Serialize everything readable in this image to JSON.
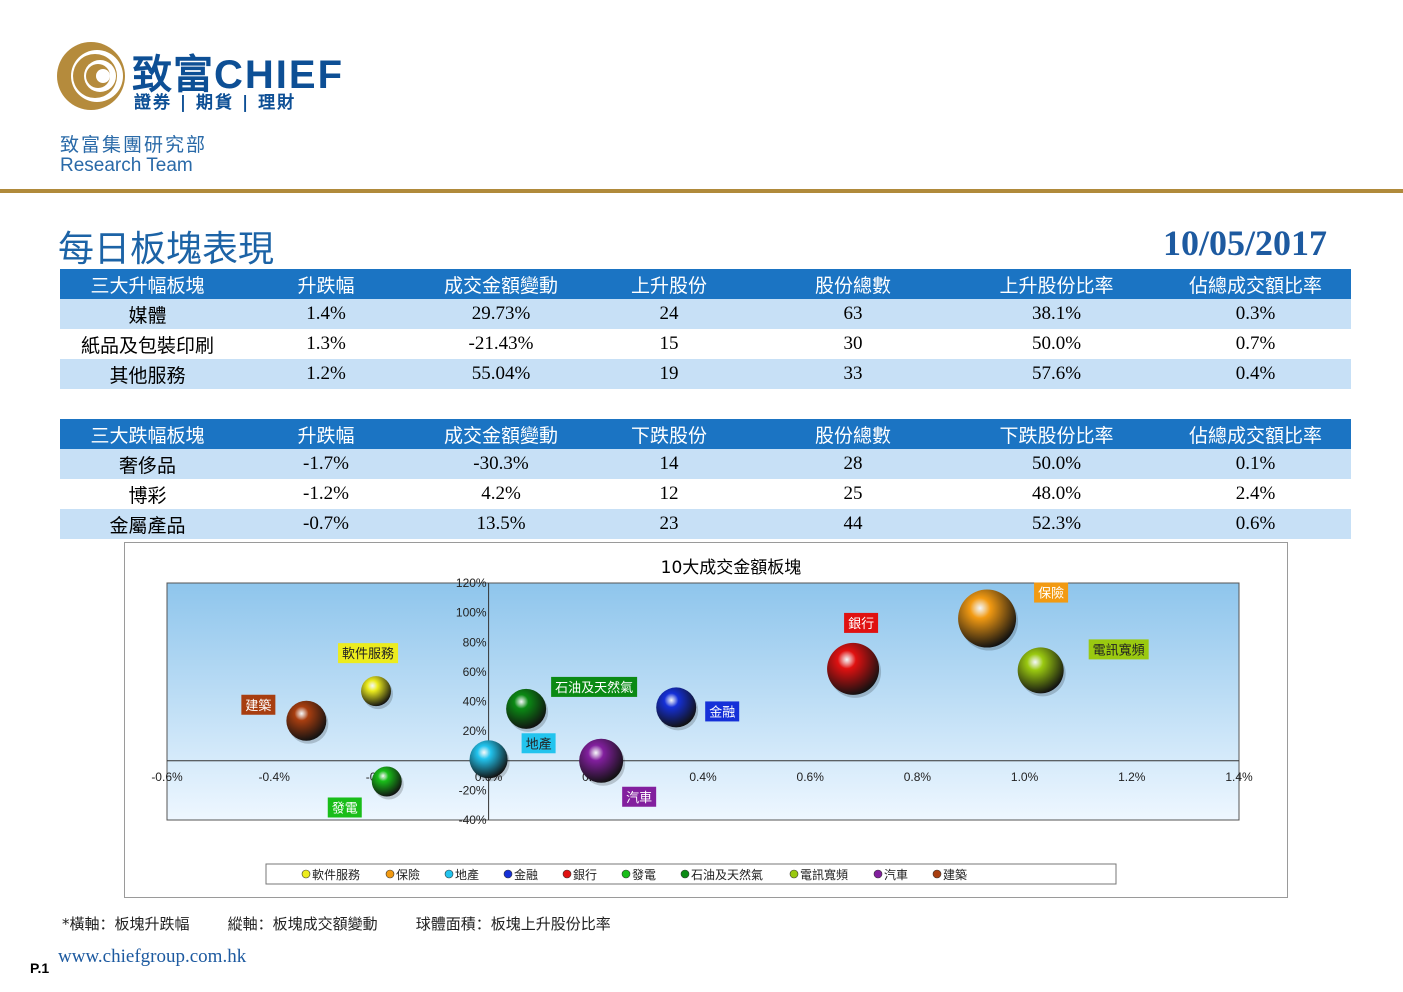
{
  "header": {
    "brand_cn": "致富",
    "brand_en": "CHIEF",
    "brand_sub": "證券 | 期貨 | 理財",
    "dept_cn": "致富集團研究部",
    "dept_en": "Research Team",
    "page_title": "每日板塊表現",
    "date": "10/05/2017",
    "colors": {
      "brand_blue": "#0d4f95",
      "gold": "#b08a3b",
      "table_header": "#1b74c3",
      "row_shade": "#c7e0f6"
    }
  },
  "table_up": {
    "headers": [
      "三大升幅板塊",
      "升跌幅",
      "成交金額變動",
      "上升股份",
      "股份總數",
      "上升股份比率",
      "佔總成交額比率"
    ],
    "rows": [
      [
        "媒體",
        "1.4%",
        "29.73%",
        "24",
        "63",
        "38.1%",
        "0.3%"
      ],
      [
        "紙品及包裝印刷",
        "1.3%",
        "-21.43%",
        "15",
        "30",
        "50.0%",
        "0.7%"
      ],
      [
        "其他服務",
        "1.2%",
        "55.04%",
        "19",
        "33",
        "57.6%",
        "0.4%"
      ]
    ]
  },
  "table_down": {
    "headers": [
      "三大跌幅板塊",
      "升跌幅",
      "成交金額變動",
      "下跌股份",
      "股份總數",
      "下跌股份比率",
      "佔總成交額比率"
    ],
    "rows": [
      [
        "奢侈品",
        "-1.7%",
        "-30.3%",
        "14",
        "28",
        "50.0%",
        "0.1%"
      ],
      [
        "博彩",
        "-1.2%",
        "4.2%",
        "12",
        "25",
        "48.0%",
        "2.4%"
      ],
      [
        "金屬產品",
        "-0.7%",
        "13.5%",
        "23",
        "44",
        "52.3%",
        "0.6%"
      ]
    ]
  },
  "chart_data": {
    "type": "scatter",
    "title": "10大成交金額板塊",
    "xlim": [
      -0.6,
      1.4
    ],
    "ylim": [
      -40,
      120
    ],
    "x_ticks": [
      "-0.6%",
      "-0.4%",
      "-0.2%",
      "0.0%",
      "0.2%",
      "0.4%",
      "0.6%",
      "0.8%",
      "1.0%",
      "1.2%",
      "1.4%"
    ],
    "y_ticks": [
      "120%",
      "100%",
      "80%",
      "60%",
      "40%",
      "20%",
      "0%",
      "-20%",
      "-40%"
    ],
    "legend_position": "bottom",
    "series": [
      {
        "name": "軟件服務",
        "x": -0.21,
        "y": 47,
        "size": 30,
        "color": "#ecec1e"
      },
      {
        "name": "保險",
        "x": 0.93,
        "y": 96,
        "size": 58,
        "color": "#f29a12"
      },
      {
        "name": "地產",
        "x": 0.0,
        "y": 1,
        "size": 38,
        "color": "#22c4ee"
      },
      {
        "name": "金融",
        "x": 0.35,
        "y": 36,
        "size": 40,
        "color": "#1530d8"
      },
      {
        "name": "銀行",
        "x": 0.68,
        "y": 62,
        "size": 52,
        "color": "#e01111"
      },
      {
        "name": "發電",
        "x": -0.19,
        "y": -14,
        "size": 30,
        "color": "#19bd19"
      },
      {
        "name": "石油及天然氣",
        "x": 0.07,
        "y": 35,
        "size": 40,
        "color": "#0b8a14"
      },
      {
        "name": "電訊寬頻",
        "x": 1.03,
        "y": 61,
        "size": 46,
        "color": "#9ac910"
      },
      {
        "name": "汽車",
        "x": 0.21,
        "y": 0,
        "size": 44,
        "color": "#821f9e"
      },
      {
        "name": "建築",
        "x": -0.34,
        "y": 27,
        "size": 40,
        "color": "#a83e10"
      }
    ]
  },
  "footer": {
    "footnote": "*橫軸：板塊升跌幅        縱軸：板塊成交額變動        球體面積：板塊上升股份比率",
    "page": "P.1",
    "website": "www.chiefgroup.com.hk"
  }
}
